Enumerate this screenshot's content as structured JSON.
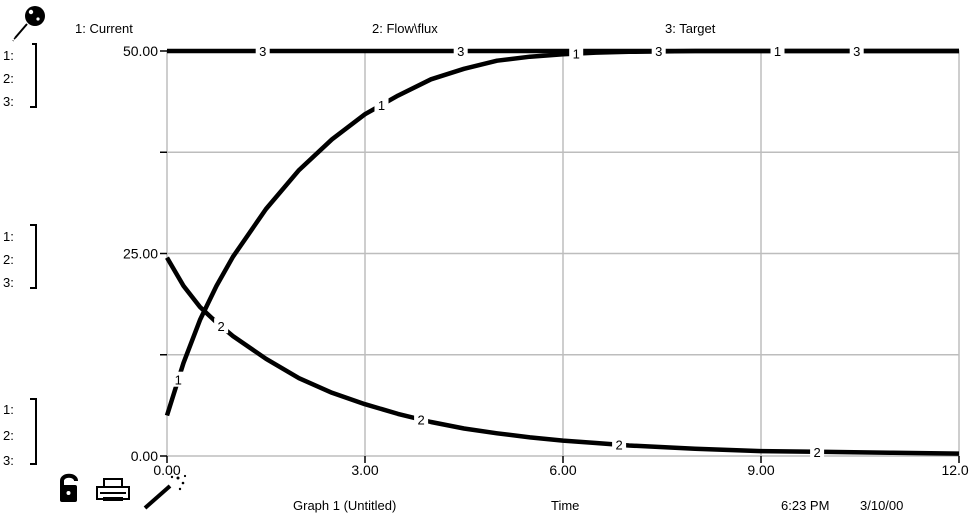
{
  "window": {
    "graph_title": "Graph 1 (Untitled)",
    "x_label": "Time",
    "timestamp_time": "6:23 PM",
    "timestamp_date": "3/10/00"
  },
  "legend": {
    "entries": [
      "1: Current",
      "2: Flow\\flux",
      "3: Target"
    ]
  },
  "scale_groups": [
    {
      "markers": [
        "1:",
        "2:",
        "3:"
      ]
    },
    {
      "markers": [
        "1:",
        "2:",
        "3:"
      ]
    },
    {
      "markers": [
        "1:",
        "2:",
        "3:"
      ]
    }
  ],
  "icons": {
    "pin": "pushpin-icon",
    "lock": "lock-icon",
    "print": "printer-icon",
    "wand": "magic-wand-icon"
  },
  "chart_data": {
    "type": "line",
    "xlim": [
      0,
      12
    ],
    "ylim": [
      0,
      50
    ],
    "x_ticks": [
      "0.00",
      "3.00",
      "6.00",
      "9.00",
      "12.00"
    ],
    "y_ticks": [
      "0.00",
      "25.00",
      "50.00"
    ],
    "grid": true,
    "series": [
      {
        "name": "Current",
        "marker": "1",
        "x": [
          0,
          0.25,
          0.5,
          0.75,
          1.0,
          1.5,
          2.0,
          2.5,
          3.0,
          3.5,
          4.0,
          4.5,
          5.0,
          5.5,
          6.0,
          6.5,
          7.0,
          8.0,
          9.0,
          10.0,
          11.0,
          12.0
        ],
        "y": [
          5.0,
          11.5,
          16.8,
          21.0,
          24.6,
          30.5,
          35.3,
          39.1,
          42.2,
          44.5,
          46.5,
          47.8,
          48.8,
          49.3,
          49.6,
          49.8,
          49.9,
          50.0,
          50.0,
          50.0,
          50.0,
          50.0
        ],
        "label_x": [
          0.17,
          3.25,
          6.2,
          9.25
        ]
      },
      {
        "name": "Flow\\flux",
        "marker": "2",
        "x": [
          0,
          0.25,
          0.5,
          0.75,
          1.0,
          1.5,
          2.0,
          2.5,
          3.0,
          3.5,
          4.0,
          4.5,
          5.0,
          5.5,
          6.0,
          6.5,
          7.0,
          8.0,
          9.0,
          10.0,
          11.0,
          12.0
        ],
        "y": [
          24.5,
          21.0,
          18.4,
          16.5,
          14.8,
          12.0,
          9.6,
          7.8,
          6.4,
          5.2,
          4.2,
          3.4,
          2.8,
          2.3,
          1.9,
          1.6,
          1.3,
          0.9,
          0.6,
          0.5,
          0.4,
          0.3
        ],
        "label_x": [
          0.82,
          3.85,
          6.85,
          9.85
        ]
      },
      {
        "name": "Target",
        "marker": "3",
        "x": [
          0,
          12
        ],
        "y": [
          50,
          50
        ],
        "label_x": [
          1.45,
          4.45,
          7.45,
          10.45
        ]
      }
    ]
  }
}
